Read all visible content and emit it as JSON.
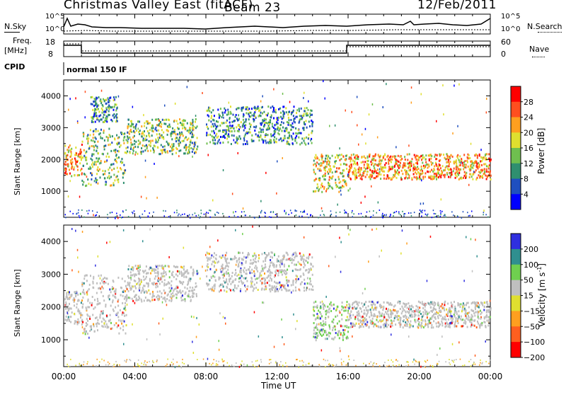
{
  "header": {
    "title": "Christmas Valley East (fitACF)",
    "beam": "Beam 23",
    "date": "12/Feb/2011"
  },
  "top_panels": {
    "nsky_label": "N.Sky",
    "nsky_ticks": [
      "10^5",
      "10^0"
    ],
    "nsearch_label": "N.Search",
    "nsearch_ticks": [
      "10^5",
      "10^0"
    ],
    "freq_label_1": "Freq.",
    "freq_label_2": "[MHz]",
    "freq_ticks": [
      "18",
      "8"
    ],
    "nave_label": "Nave",
    "nave_ticks": [
      "60",
      "0"
    ],
    "cpid_label": "CPID",
    "cpid_value": "normal 150 IF"
  },
  "chart_data": [
    {
      "type": "heatmap",
      "name": "power",
      "ylabel": "Slant Range [km]",
      "xlabel": "Time UT",
      "xticks": [
        "00:00",
        "04:00",
        "08:00",
        "12:00",
        "16:00",
        "20:00",
        "00:00"
      ],
      "yticks": [
        "1000",
        "2000",
        "3000",
        "4000"
      ],
      "ylim": [
        180,
        4500
      ],
      "xlim_hours": [
        0,
        24
      ],
      "colorbar_label": "Power [dB]",
      "colorbar_ticks": [
        "4",
        "8",
        "12",
        "16",
        "20",
        "24",
        "28"
      ],
      "colorbar_range": [
        0,
        30
      ],
      "colors": [
        "#0000ff",
        "#1f4fbf",
        "#2f8f6f",
        "#6fbf4f",
        "#dfdf2f",
        "#ff9f1f",
        "#ff4f1f",
        "#ff0000"
      ],
      "regions": [
        {
          "t": [
            0.0,
            1.0
          ],
          "r": [
            1500,
            2500
          ],
          "level": 20
        },
        {
          "t": [
            1.0,
            3.5
          ],
          "r": [
            1200,
            3000
          ],
          "level": 12
        },
        {
          "t": [
            1.5,
            3.0
          ],
          "r": [
            3200,
            4000
          ],
          "level": 8
        },
        {
          "t": [
            3.5,
            7.5
          ],
          "r": [
            2200,
            3300
          ],
          "level": 14
        },
        {
          "t": [
            8.0,
            14.0
          ],
          "r": [
            2500,
            3700
          ],
          "level": 10
        },
        {
          "t": [
            14.0,
            16.0
          ],
          "r": [
            1000,
            2200
          ],
          "level": 18
        },
        {
          "t": [
            16.0,
            24.0
          ],
          "r": [
            1400,
            2200
          ],
          "level": 22
        }
      ]
    },
    {
      "type": "heatmap",
      "name": "velocity",
      "ylabel": "Slant Range [km]",
      "xlabel": "Time UT",
      "xticks": [
        "00:00",
        "04:00",
        "08:00",
        "12:00",
        "16:00",
        "20:00",
        "00:00"
      ],
      "yticks": [
        "1000",
        "2000",
        "3000",
        "4000"
      ],
      "ylim": [
        180,
        4500
      ],
      "colorbar_label": "Velocity [m s^-1]",
      "colorbar_ticks": [
        "200",
        "100",
        "50",
        "15",
        "-15",
        "-50",
        "-100",
        "-200"
      ],
      "colorbar_range": [
        -250,
        250
      ],
      "colors": [
        "#2f2fdf",
        "#2f8f8f",
        "#6fcf4f",
        "#bfbfbf",
        "#dfdf2f",
        "#ff9f1f",
        "#ff5f1f",
        "#ff0000"
      ],
      "regions": [
        {
          "t": [
            0.0,
            1.0
          ],
          "r": [
            1500,
            2500
          ],
          "level": 0
        },
        {
          "t": [
            1.0,
            3.5
          ],
          "r": [
            1200,
            3000
          ],
          "level": 0
        },
        {
          "t": [
            3.5,
            7.5
          ],
          "r": [
            2200,
            3300
          ],
          "level": 0
        },
        {
          "t": [
            8.0,
            14.0
          ],
          "r": [
            2500,
            3700
          ],
          "level": 0
        },
        {
          "t": [
            14.0,
            16.0
          ],
          "r": [
            1000,
            2200
          ],
          "level": 30
        },
        {
          "t": [
            16.0,
            24.0
          ],
          "r": [
            1400,
            2200
          ],
          "level": 0
        }
      ]
    }
  ]
}
